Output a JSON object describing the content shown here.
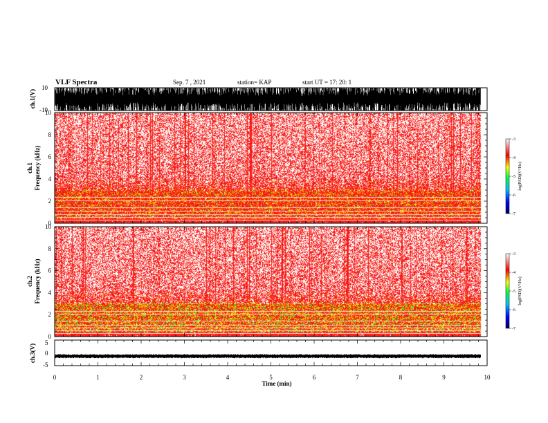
{
  "header": {
    "title": "VLF Spectra",
    "date": "Sep. 7 , 2021",
    "station": "station= KAP",
    "start": "start UT = 17: 20: 1"
  },
  "colors": {
    "spectrogram_background": "#ffffff",
    "low_power": "#ff3030",
    "mid_power": "#ffd700",
    "high_power": "#40ff40",
    "waveform": "#000000"
  },
  "chart_data": [
    {
      "type": "line",
      "name": "ch1-waveform",
      "ylabel": "ch.1(V)",
      "ylim": [
        -10,
        10
      ],
      "yticks": [
        "10",
        "-10"
      ],
      "xlim": [
        0,
        10
      ]
    },
    {
      "type": "heatmap",
      "name": "ch1-spectrogram",
      "ylabel_lines": [
        "ch.1",
        "Frequency (kHz)"
      ],
      "ylim": [
        0,
        10
      ],
      "yticks": [
        "10",
        "8",
        "6",
        "4",
        "2",
        "0"
      ],
      "xlim": [
        0,
        10
      ],
      "data_end_min": 9.85,
      "colorbar": {
        "label": "log(PSD)(V²/Hz)",
        "range": [
          -7,
          -3
        ],
        "ticks": [
          "-3",
          "-4",
          "-5",
          "-6",
          "-7"
        ]
      }
    },
    {
      "type": "heatmap",
      "name": "ch2-spectrogram",
      "ylabel_lines": [
        "ch.2",
        "Frequency (kHz)"
      ],
      "ylim": [
        0,
        10
      ],
      "yticks": [
        "10",
        "8",
        "6",
        "4",
        "2",
        "0"
      ],
      "xlim": [
        0,
        10
      ],
      "data_end_min": 9.85,
      "colorbar": {
        "label": "log(PSD)(V²/Hz)",
        "range": [
          -7,
          -3
        ],
        "ticks": [
          "-3",
          "-4",
          "-5",
          "-6",
          "-7"
        ]
      }
    },
    {
      "type": "line",
      "name": "ch3-waveform",
      "ylabel": "ch.3(V)",
      "ylim": [
        -5,
        5
      ],
      "yticks": [
        "5",
        "0",
        "-5"
      ],
      "level": -1.3,
      "xlim": [
        0,
        10
      ]
    }
  ],
  "xaxis": {
    "label": "Time (min)",
    "ticks": [
      "0",
      "1",
      "2",
      "3",
      "4",
      "5",
      "6",
      "7",
      "8",
      "9",
      "10"
    ]
  }
}
